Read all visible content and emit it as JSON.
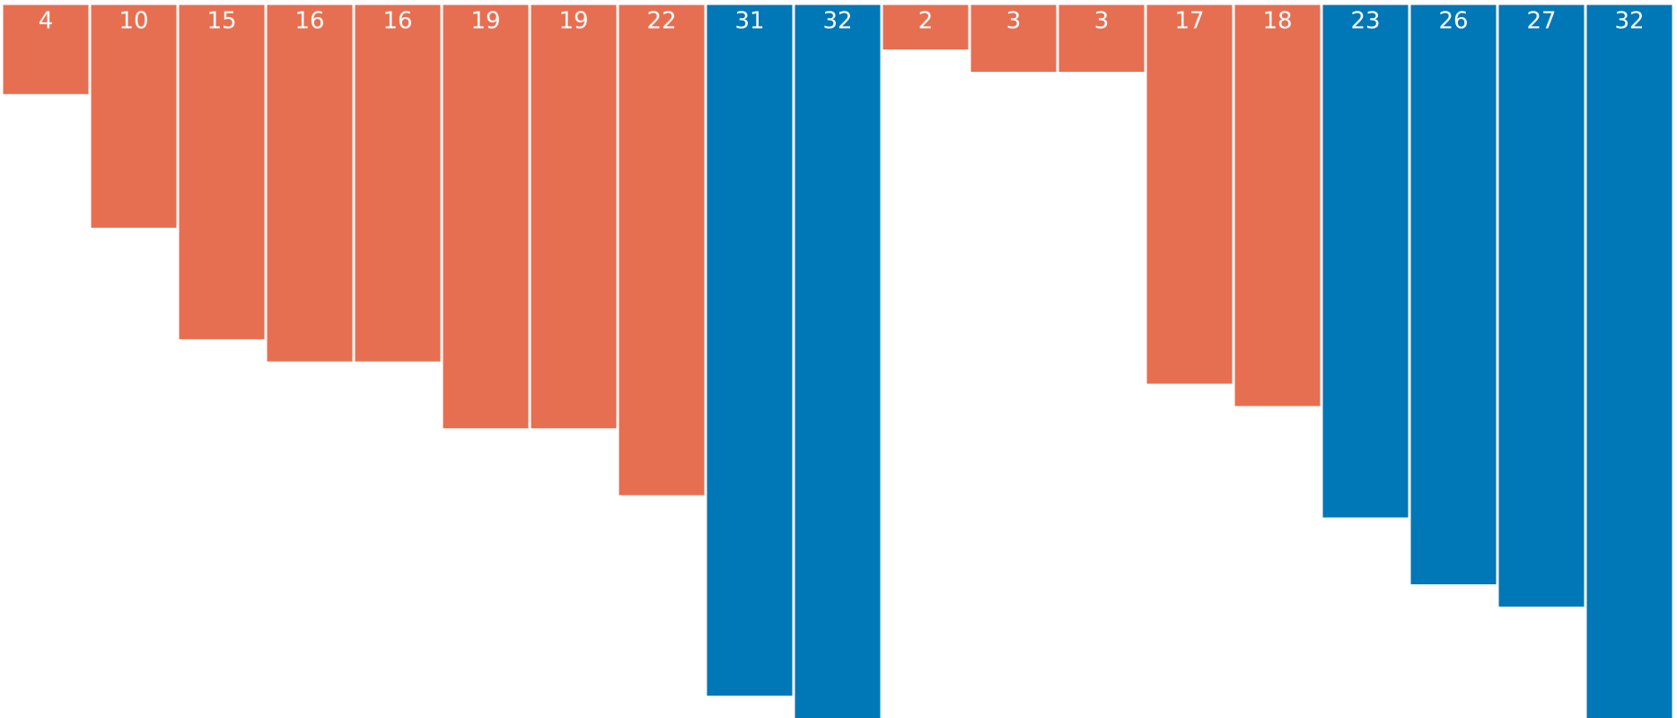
{
  "chart_data": {
    "type": "bar",
    "orientation": "vertical-hanging-from-top",
    "categories": [
      "",
      "",
      "",
      "",
      "",
      "",
      "",
      "",
      "",
      "",
      "",
      "",
      "",
      "",
      "",
      "",
      "",
      "",
      ""
    ],
    "values": [
      4,
      10,
      15,
      16,
      16,
      19,
      19,
      22,
      31,
      32,
      2,
      3,
      3,
      17,
      18,
      23,
      26,
      27,
      32
    ],
    "value_labels": [
      "4",
      "10",
      "15",
      "16",
      "16",
      "19",
      "19",
      "22",
      "31",
      "32",
      "2",
      "3",
      "3",
      "17",
      "18",
      "23",
      "26",
      "27",
      "32"
    ],
    "highlight": [
      false,
      false,
      false,
      false,
      false,
      false,
      false,
      false,
      true,
      true,
      false,
      false,
      false,
      false,
      false,
      true,
      true,
      true,
      true
    ],
    "ylim": [
      0,
      32
    ],
    "grid": false,
    "legend": "none",
    "title": "",
    "xlabel": "",
    "ylabel": "",
    "colors": {
      "base": "#E76F51",
      "highlight": "#0077B6",
      "label": "#ffffff",
      "background": "#ffffff"
    }
  }
}
